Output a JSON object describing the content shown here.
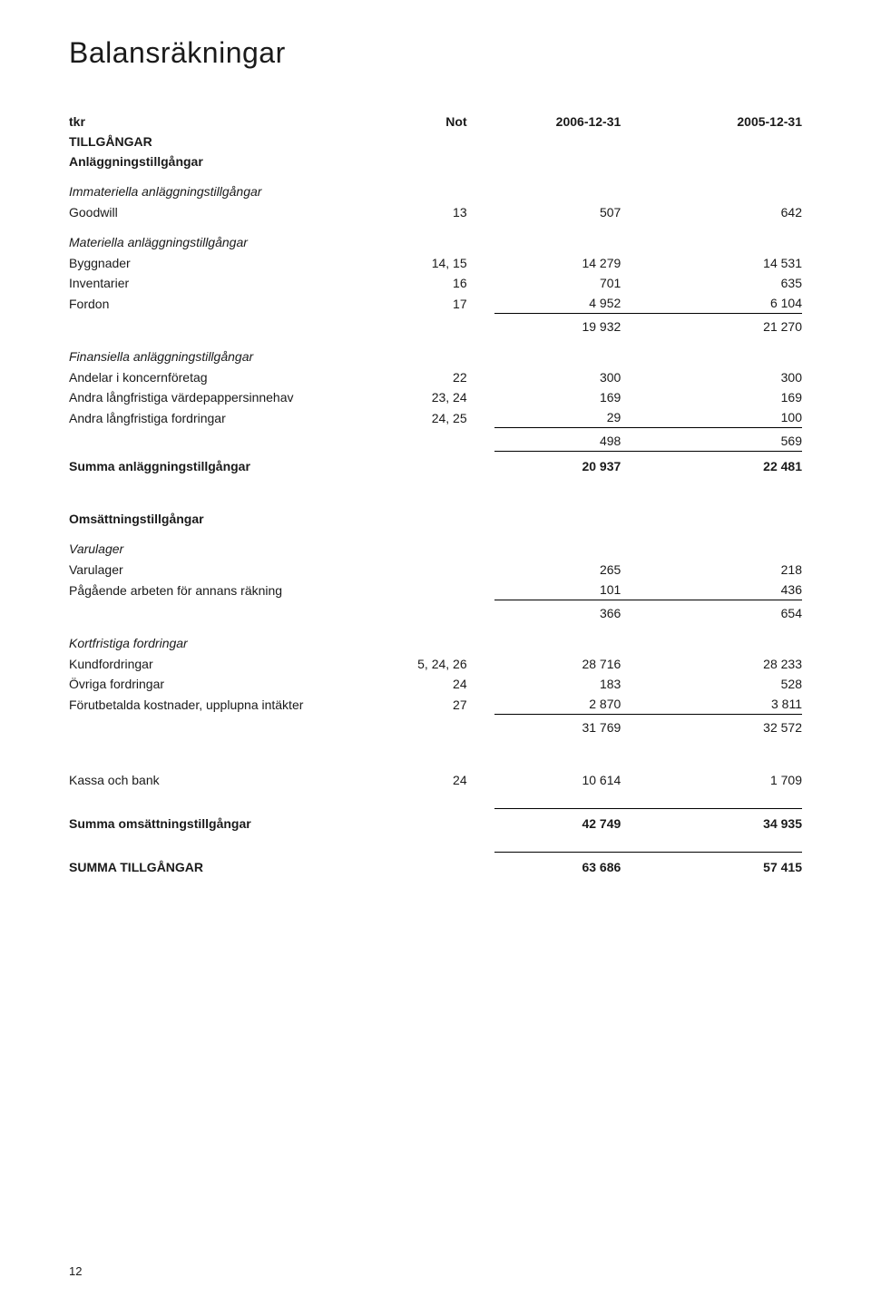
{
  "title": "Balansräkningar",
  "header": {
    "c0": "tkr",
    "c1": "Not",
    "c2": "2006-12-31",
    "c3": "2005-12-31"
  },
  "sec_tillgangar": "TILLGÅNGAR",
  "sec_anl": "Anläggningstillgångar",
  "grp_imm": "Immateriella anläggningstillgångar",
  "row_goodwill": {
    "label": "Goodwill",
    "not": "13",
    "v1": "507",
    "v2": "642"
  },
  "grp_mat": "Materiella anläggningstillgångar",
  "row_bygg": {
    "label": "Byggnader",
    "not": "14, 15",
    "v1": "14 279",
    "v2": "14 531"
  },
  "row_inv": {
    "label": "Inventarier",
    "not": "16",
    "v1": "701",
    "v2": "635"
  },
  "row_ford": {
    "label": "Fordon",
    "not": "17",
    "v1": "4 952",
    "v2": "6 104"
  },
  "sub_mat": {
    "v1": "19 932",
    "v2": "21 270"
  },
  "grp_fin": "Finansiella anläggningstillgångar",
  "row_and": {
    "label": "Andelar i koncernföretag",
    "not": "22",
    "v1": "300",
    "v2": "300"
  },
  "row_vard": {
    "label": "Andra långfristiga värdepappersinnehav",
    "not": "23, 24",
    "v1": "169",
    "v2": "169"
  },
  "row_fordr": {
    "label": "Andra långfristiga fordringar",
    "not": "24, 25",
    "v1": "29",
    "v2": "100"
  },
  "sub_fin": {
    "v1": "498",
    "v2": "569"
  },
  "sum_anl": {
    "label": "Summa anläggningstillgångar",
    "v1": "20 937",
    "v2": "22 481"
  },
  "sec_oms": "Omsättningstillgångar",
  "grp_varul": "Varulager",
  "row_varul": {
    "label": "Varulager",
    "v1": "265",
    "v2": "218"
  },
  "row_paga": {
    "label": "Pågående arbeten för annans räkning",
    "v1": "101",
    "v2": "436"
  },
  "sub_varul": {
    "v1": "366",
    "v2": "654"
  },
  "grp_kort": "Kortfristiga fordringar",
  "row_kund": {
    "label": "Kundfordringar",
    "not": "5, 24, 26",
    "v1": "28 716",
    "v2": "28 233"
  },
  "row_ovr": {
    "label": "Övriga fordringar",
    "not": "24",
    "v1": "183",
    "v2": "528"
  },
  "row_forut": {
    "label": "Förutbetalda kostnader, upplupna intäkter",
    "not": "27",
    "v1": "2 870",
    "v2": "3 811"
  },
  "sub_kort": {
    "v1": "31 769",
    "v2": "32 572"
  },
  "row_kassa": {
    "label": "Kassa och bank",
    "not": "24",
    "v1": "10 614",
    "v2": "1 709"
  },
  "sum_oms": {
    "label": "Summa omsättningstillgångar",
    "v1": "42 749",
    "v2": "34 935"
  },
  "sum_tot": {
    "label": "SUMMA TILLGÅNGAR",
    "v1": "63 686",
    "v2": "57 415"
  },
  "pagenum": "12"
}
